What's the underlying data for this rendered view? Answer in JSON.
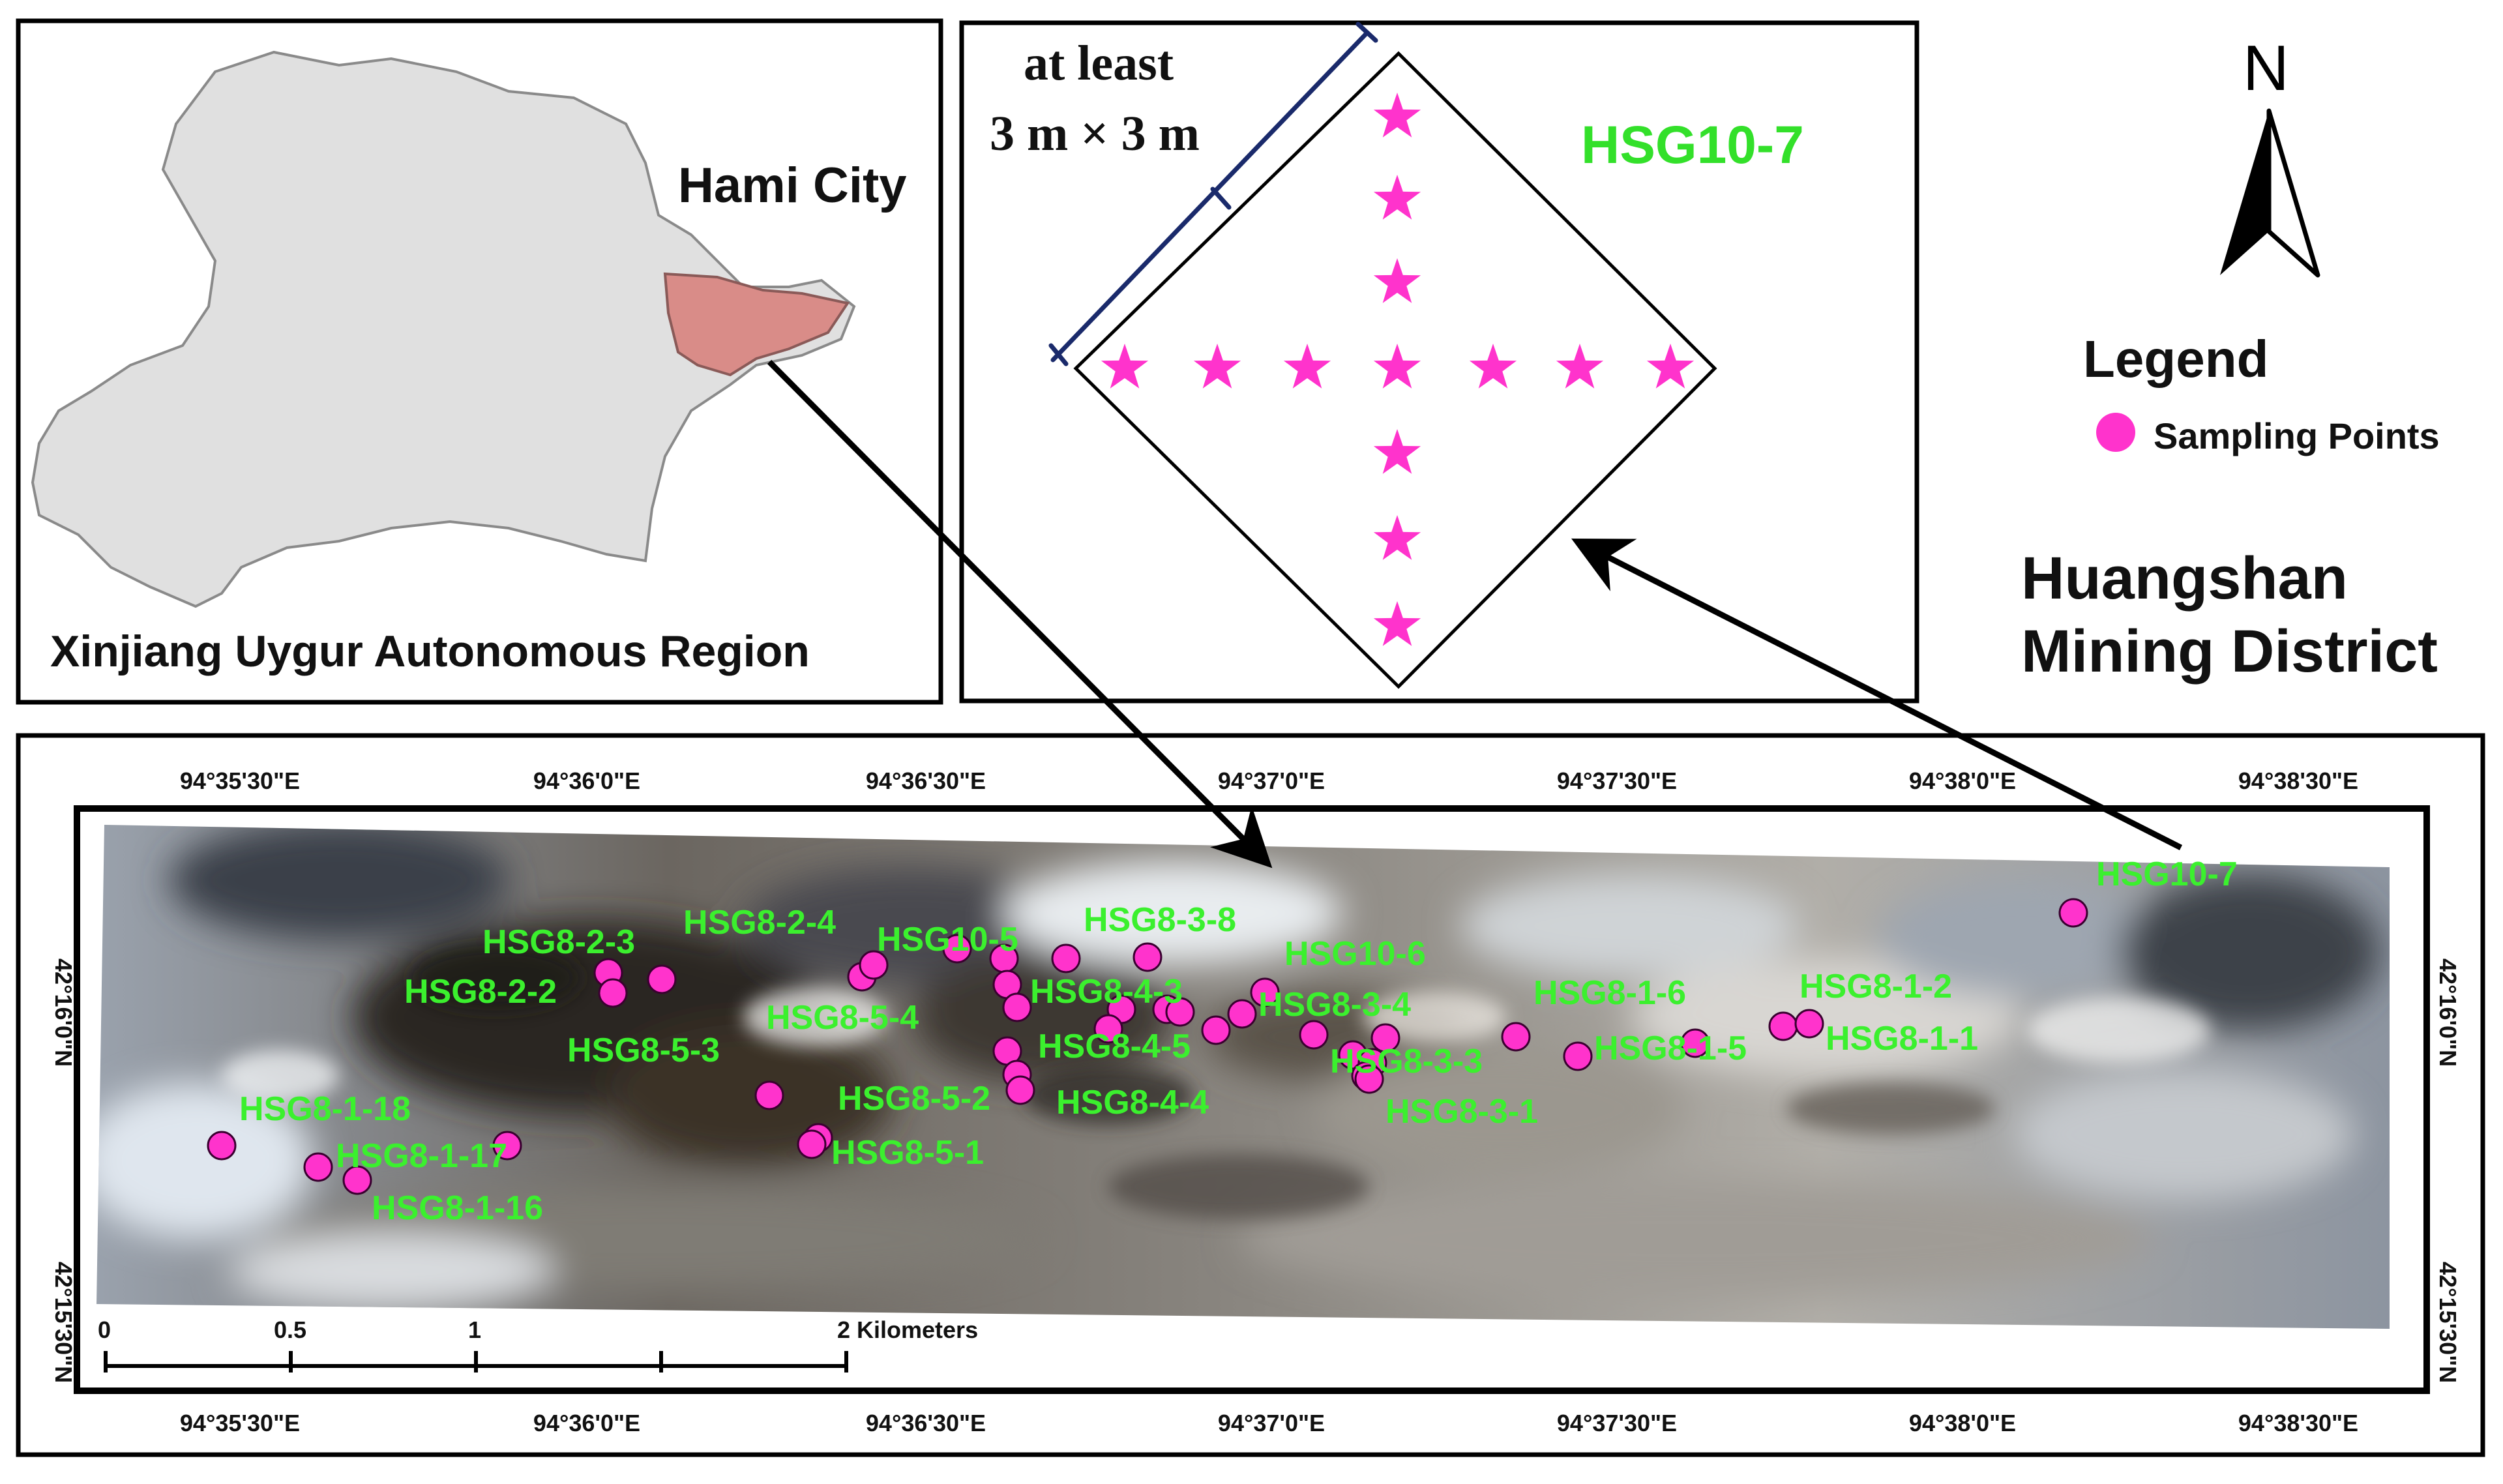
{
  "inset_map": {
    "city_label": "Hami City",
    "region_label": "Xinjiang Uygur Autonomous Region"
  },
  "plot_diagram": {
    "size_label_line1": "at least",
    "size_label_line2": "3 m × 3 m",
    "plot_label": "HSG10-7"
  },
  "legend": {
    "north_letter": "N",
    "title": "Legend",
    "item_label": "Sampling Points",
    "item_color": "#ff33cc"
  },
  "district_title": {
    "line1": "Huangshan",
    "line2": "Mining District"
  },
  "coords": {
    "lon_top": [
      "94°35'30\"E",
      "94°36'0\"E",
      "94°36'30\"E",
      "94°37'0\"E",
      "94°37'30\"E",
      "94°38'0\"E",
      "94°38'30\"E"
    ],
    "lon_bottom": [
      "94°35'30\"E",
      "94°36'0\"E",
      "94°36'30\"E",
      "94°37'0\"E",
      "94°37'30\"E",
      "94°38'0\"E",
      "94°38'30\"E"
    ],
    "lat_left": [
      "42°16'0\"N",
      "42°15'30\"N"
    ],
    "lat_right": [
      "42°16'0\"N",
      "42°15'30\"N"
    ]
  },
  "scale_bar": {
    "ticks": [
      "0",
      "0.5",
      "1",
      "2 Kilometers"
    ]
  },
  "sample_labels": [
    "HSG10-7",
    "HSG8-2-4",
    "HSG10-5",
    "HSG8-3-8",
    "HSG10-6",
    "HSG8-2-3",
    "HSG8-2-2",
    "HSG8-5-4",
    "HSG8-4-3",
    "HSG8-3-4",
    "HSG8-1-6",
    "HSG8-1-2",
    "HSG8-5-3",
    "HSG8-4-5",
    "HSG8-3-3",
    "HSG8-1-5",
    "HSG8-1-1",
    "HSG8-5-2",
    "HSG8-4-4",
    "HSG8-3-1",
    "HSG8-1-18",
    "HSG8-5-1",
    "HSG8-1-17",
    "HSG8-1-16"
  ]
}
